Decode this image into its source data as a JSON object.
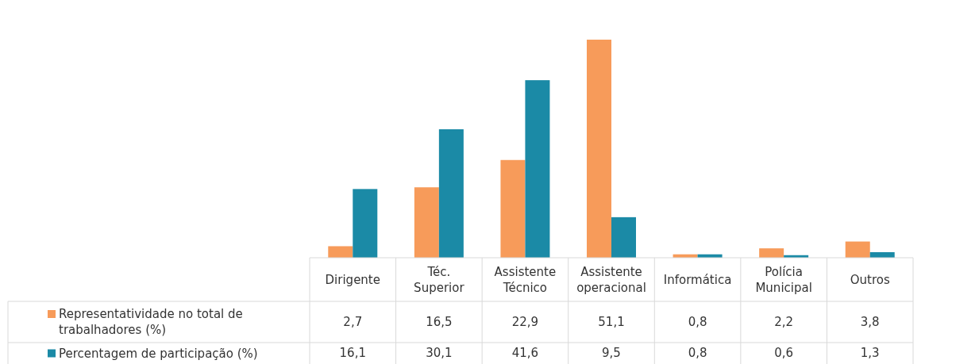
{
  "chart_data": {
    "type": "bar",
    "legend": "bottom left",
    "categories": [
      "Dirigente",
      "Téc. Superior",
      "Assistente Técnico",
      "Assistente operacional",
      "Informática",
      "Polícia Municipal",
      "Outros"
    ],
    "series": [
      {
        "name": "Representatividade no total de trabalhadores (%)",
        "color": "#f79b5a",
        "values": [
          2.7,
          16.5,
          22.9,
          51.1,
          0.8,
          2.2,
          3.8
        ],
        "value_labels": [
          "2,7",
          "16,5",
          "22,9",
          "51,1",
          "0,8",
          "2,2",
          "3,8"
        ]
      },
      {
        "name": "Percentagem de participação (%)",
        "color": "#1b8aa6",
        "values": [
          16.1,
          30.1,
          41.6,
          9.5,
          0.8,
          0.6,
          1.3
        ],
        "value_labels": [
          "16,1",
          "30,1",
          "41,6",
          "9,5",
          "0,8",
          "0,6",
          "1,3"
        ]
      }
    ]
  }
}
